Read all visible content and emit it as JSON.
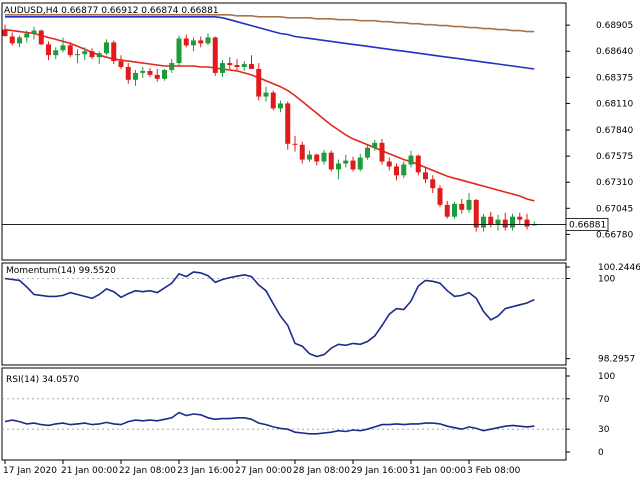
{
  "colors": {
    "up": "#1f9a3c",
    "down": "#e01b1b",
    "ma_fast": "#e3271f",
    "ma_mid": "#2431c4",
    "ma_slow": "#a9744a",
    "momentum": "#1d2a8c",
    "rsi": "#1d2a8c",
    "grid": "#9a9a9a"
  },
  "chart_data": [
    {
      "type": "candlestick",
      "title": "AUDUSD,H4  0.66877 0.66912 0.66874 0.66881",
      "ylim": [
        0.6652,
        0.6913
      ],
      "y_ticks": [
        0.68905,
        0.6864,
        0.68375,
        0.6811,
        0.6784,
        0.67575,
        0.6731,
        0.67045,
        0.6678
      ],
      "y_tick_labels": [
        "0.68905",
        "0.68640",
        "0.68375",
        "0.68110",
        "0.67840",
        "0.67575",
        "0.67310",
        "0.67045",
        "0.66780"
      ],
      "current_price": 0.66881,
      "current_price_label": "0.66881",
      "candles": [
        [
          0.6886,
          0.6891,
          0.6879,
          0.68795
        ],
        [
          0.6879,
          0.6883,
          0.687,
          0.6872
        ],
        [
          0.6872,
          0.688,
          0.6868,
          0.6878
        ],
        [
          0.6878,
          0.6885,
          0.6873,
          0.6882
        ],
        [
          0.6882,
          0.6889,
          0.6876,
          0.6885
        ],
        [
          0.6885,
          0.6886,
          0.687,
          0.6871
        ],
        [
          0.6871,
          0.6874,
          0.6855,
          0.686
        ],
        [
          0.686,
          0.6868,
          0.6856,
          0.6865
        ],
        [
          0.6865,
          0.6878,
          0.6863,
          0.687
        ],
        [
          0.687,
          0.6873,
          0.6858,
          0.686
        ],
        [
          0.686,
          0.6866,
          0.6852,
          0.6861
        ],
        [
          0.6861,
          0.6868,
          0.6855,
          0.6864
        ],
        [
          0.6864,
          0.6867,
          0.6856,
          0.6858
        ],
        [
          0.6858,
          0.6864,
          0.6851,
          0.6862
        ],
        [
          0.6862,
          0.6876,
          0.686,
          0.6873
        ],
        [
          0.6873,
          0.6875,
          0.6851,
          0.6854
        ],
        [
          0.6854,
          0.686,
          0.6846,
          0.6848
        ],
        [
          0.6848,
          0.6852,
          0.6831,
          0.6835
        ],
        [
          0.6835,
          0.6845,
          0.6829,
          0.6842
        ],
        [
          0.6842,
          0.6848,
          0.6837,
          0.6844
        ],
        [
          0.6844,
          0.6847,
          0.6838,
          0.684
        ],
        [
          0.684,
          0.6846,
          0.6833,
          0.6836
        ],
        [
          0.6836,
          0.6846,
          0.6834,
          0.6845
        ],
        [
          0.6845,
          0.6856,
          0.6842,
          0.6852
        ],
        [
          0.6852,
          0.688,
          0.6849,
          0.6877
        ],
        [
          0.6877,
          0.6881,
          0.6868,
          0.687
        ],
        [
          0.687,
          0.6878,
          0.6864,
          0.6875
        ],
        [
          0.6875,
          0.6879,
          0.6868,
          0.6872
        ],
        [
          0.6872,
          0.6882,
          0.687,
          0.6878
        ],
        [
          0.6878,
          0.6879,
          0.6839,
          0.6842
        ],
        [
          0.6842,
          0.6855,
          0.6838,
          0.6852
        ],
        [
          0.6852,
          0.6858,
          0.6846,
          0.685
        ],
        [
          0.685,
          0.6856,
          0.6845,
          0.6848
        ],
        [
          0.6848,
          0.6854,
          0.6844,
          0.6851
        ],
        [
          0.6851,
          0.686,
          0.6847,
          0.6846
        ],
        [
          0.6846,
          0.6852,
          0.6814,
          0.6818
        ],
        [
          0.6818,
          0.6828,
          0.6813,
          0.6822
        ],
        [
          0.6822,
          0.6824,
          0.6804,
          0.6806
        ],
        [
          0.6806,
          0.6814,
          0.6802,
          0.6811
        ],
        [
          0.6811,
          0.6813,
          0.6764,
          0.677
        ],
        [
          0.677,
          0.6778,
          0.6762,
          0.6769
        ],
        [
          0.6769,
          0.6772,
          0.675,
          0.6754
        ],
        [
          0.6754,
          0.6763,
          0.6752,
          0.6759
        ],
        [
          0.6759,
          0.676,
          0.6748,
          0.6752
        ],
        [
          0.6752,
          0.6764,
          0.6749,
          0.6761
        ],
        [
          0.6761,
          0.6763,
          0.6742,
          0.6744
        ],
        [
          0.6744,
          0.6754,
          0.6734,
          0.675
        ],
        [
          0.675,
          0.6759,
          0.6746,
          0.6753
        ],
        [
          0.6753,
          0.6757,
          0.6742,
          0.6744
        ],
        [
          0.6744,
          0.676,
          0.6742,
          0.6756
        ],
        [
          0.6756,
          0.6769,
          0.6754,
          0.6766
        ],
        [
          0.6766,
          0.6774,
          0.6763,
          0.6771
        ],
        [
          0.6771,
          0.6775,
          0.6749,
          0.6752
        ],
        [
          0.6752,
          0.6756,
          0.6743,
          0.6747
        ],
        [
          0.6747,
          0.675,
          0.6733,
          0.6738
        ],
        [
          0.6738,
          0.6752,
          0.6735,
          0.6749
        ],
        [
          0.6749,
          0.6763,
          0.6746,
          0.6758
        ],
        [
          0.6758,
          0.6759,
          0.6738,
          0.6741
        ],
        [
          0.6741,
          0.6746,
          0.673,
          0.6734
        ],
        [
          0.6734,
          0.6738,
          0.672,
          0.6725
        ],
        [
          0.6725,
          0.6728,
          0.6706,
          0.6708
        ],
        [
          0.6708,
          0.6712,
          0.6694,
          0.6696
        ],
        [
          0.6696,
          0.6711,
          0.6694,
          0.6709
        ],
        [
          0.6709,
          0.6714,
          0.6699,
          0.6703
        ],
        [
          0.6703,
          0.672,
          0.67,
          0.6713
        ],
        [
          0.6713,
          0.6714,
          0.6681,
          0.6685
        ],
        [
          0.6685,
          0.6699,
          0.6681,
          0.6696
        ],
        [
          0.6696,
          0.6701,
          0.6685,
          0.6688
        ],
        [
          0.6688,
          0.6698,
          0.6682,
          0.6693
        ],
        [
          0.6693,
          0.67,
          0.6682,
          0.6685
        ],
        [
          0.6685,
          0.6699,
          0.6682,
          0.6696
        ],
        [
          0.6696,
          0.67,
          0.6688,
          0.6693
        ],
        [
          0.6693,
          0.6699,
          0.6683,
          0.6686
        ],
        [
          0.66877,
          0.66912,
          0.66874,
          0.66881
        ]
      ],
      "ma_fast": [
        0.6886,
        0.6885,
        0.6884,
        0.6883,
        0.6882,
        0.688,
        0.6878,
        0.6876,
        0.6874,
        0.6872,
        0.6869,
        0.6866,
        0.6863,
        0.686,
        0.6858,
        0.6856,
        0.6855,
        0.6854,
        0.6853,
        0.6852,
        0.6851,
        0.685,
        0.6849,
        0.6849,
        0.6849,
        0.6849,
        0.6849,
        0.6848,
        0.6848,
        0.6847,
        0.6846,
        0.6845,
        0.6844,
        0.6842,
        0.684,
        0.6837,
        0.6834,
        0.6831,
        0.6828,
        0.6824,
        0.6819,
        0.6813,
        0.6807,
        0.6801,
        0.6795,
        0.6789,
        0.6784,
        0.6779,
        0.6775,
        0.6772,
        0.6769,
        0.6766,
        0.6763,
        0.676,
        0.6757,
        0.6754,
        0.6752,
        0.6749,
        0.6746,
        0.6743,
        0.674,
        0.6737,
        0.6735,
        0.6733,
        0.6731,
        0.6729,
        0.6727,
        0.6725,
        0.6723,
        0.6721,
        0.6719,
        0.6717,
        0.6714,
        0.6712
      ],
      "ma_mid": [
        0.6899,
        0.6899,
        0.6899,
        0.6899,
        0.6899,
        0.6899,
        0.6899,
        0.6899,
        0.6899,
        0.6899,
        0.6899,
        0.6899,
        0.6899,
        0.6899,
        0.6899,
        0.6899,
        0.6899,
        0.6899,
        0.6899,
        0.6899,
        0.6899,
        0.6899,
        0.6899,
        0.6899,
        0.6899,
        0.6899,
        0.6899,
        0.6899,
        0.6899,
        0.6899,
        0.6898,
        0.6896,
        0.6894,
        0.6892,
        0.689,
        0.6888,
        0.6886,
        0.6884,
        0.6882,
        0.6881,
        0.6879,
        0.6878,
        0.6877,
        0.6876,
        0.6875,
        0.6874,
        0.6873,
        0.6872,
        0.6871,
        0.687,
        0.6869,
        0.6868,
        0.6867,
        0.6866,
        0.6865,
        0.6864,
        0.6863,
        0.6862,
        0.6861,
        0.686,
        0.6859,
        0.6858,
        0.6857,
        0.6856,
        0.6855,
        0.6854,
        0.6853,
        0.6852,
        0.6851,
        0.685,
        0.6849,
        0.6848,
        0.6847,
        0.6846
      ],
      "ma_slow": [
        0.6901,
        0.6901,
        0.6901,
        0.6901,
        0.6901,
        0.6901,
        0.6901,
        0.6901,
        0.6901,
        0.6901,
        0.6901,
        0.6901,
        0.6901,
        0.6901,
        0.6901,
        0.6901,
        0.6901,
        0.6901,
        0.6901,
        0.6901,
        0.6901,
        0.6901,
        0.6901,
        0.6901,
        0.6901,
        0.6901,
        0.6901,
        0.6901,
        0.6901,
        0.6901,
        0.6901,
        0.6901,
        0.69,
        0.69,
        0.69,
        0.6899,
        0.6899,
        0.6899,
        0.6899,
        0.6898,
        0.6898,
        0.6898,
        0.6898,
        0.6897,
        0.6897,
        0.6897,
        0.6896,
        0.6896,
        0.6896,
        0.6895,
        0.6895,
        0.6895,
        0.6894,
        0.6894,
        0.6893,
        0.6893,
        0.6892,
        0.6892,
        0.6891,
        0.6891,
        0.689,
        0.689,
        0.6889,
        0.6889,
        0.6888,
        0.6888,
        0.6887,
        0.6887,
        0.6886,
        0.6886,
        0.6885,
        0.6885,
        0.6884,
        0.6884
      ],
      "x_labels": [
        "17 Jan 2020",
        "21 Jan 00:00",
        "22 Jan 08:00",
        "23 Jan 16:00",
        "27 Jan 00:00",
        "28 Jan 08:00",
        "29 Jan 16:00",
        "31 Jan 00:00",
        "3 Feb 08:00"
      ],
      "x_label_bar_index": [
        0,
        8,
        16,
        24,
        32,
        40,
        48,
        56,
        64
      ]
    },
    {
      "type": "line",
      "title": "Momentum(14) 99.5520",
      "ylim": [
        98.16,
        100.33
      ],
      "y_ticks": [
        100.2446,
        100.0,
        98.2957
      ],
      "y_tick_labels": [
        "100.2446",
        "100",
        "98.2957"
      ],
      "level": 100.0,
      "values": [
        100.0,
        99.98,
        99.96,
        99.82,
        99.66,
        99.64,
        99.62,
        99.62,
        99.64,
        99.7,
        99.66,
        99.62,
        99.58,
        99.66,
        99.78,
        99.72,
        99.6,
        99.68,
        99.74,
        99.72,
        99.74,
        99.7,
        99.8,
        99.9,
        100.1,
        100.04,
        100.14,
        100.12,
        100.06,
        99.92,
        99.98,
        100.02,
        100.05,
        100.08,
        100.04,
        99.86,
        99.74,
        99.46,
        99.2,
        99.0,
        98.62,
        98.56,
        98.4,
        98.34,
        98.38,
        98.52,
        98.6,
        98.58,
        98.62,
        98.6,
        98.66,
        98.78,
        99.0,
        99.24,
        99.36,
        99.34,
        99.52,
        99.84,
        99.96,
        99.94,
        99.9,
        99.74,
        99.62,
        99.64,
        99.7,
        99.58,
        99.3,
        99.12,
        99.2,
        99.36,
        99.4,
        99.44,
        99.48,
        99.552
      ],
      "x_labels": [
        "17 Jan 2020",
        "21 Jan 00:00",
        "22 Jan 08:00",
        "23 Jan 16:00",
        "27 Jan 00:00",
        "28 Jan 08:00",
        "29 Jan 16:00",
        "31 Jan 00:00",
        "3 Feb 08:00"
      ]
    },
    {
      "type": "line",
      "title": "RSI(14) 34.0570",
      "ylim": [
        0,
        100
      ],
      "y_ticks": [
        100,
        70,
        30,
        0
      ],
      "y_tick_labels": [
        "100",
        "70",
        "30",
        "0"
      ],
      "levels": [
        70,
        30
      ],
      "values": [
        40,
        42,
        40,
        37,
        38,
        36,
        35,
        37,
        38,
        36,
        37,
        38,
        36,
        37,
        39,
        37,
        36,
        40,
        42,
        41,
        42,
        41,
        43,
        45,
        52,
        48,
        50,
        49,
        45,
        43,
        44,
        44,
        45,
        45,
        43,
        38,
        36,
        33,
        31,
        30,
        26,
        25,
        24,
        24,
        25,
        26,
        28,
        27,
        29,
        28,
        30,
        33,
        36,
        36,
        37,
        36,
        37,
        37,
        38,
        38,
        37,
        34,
        32,
        30,
        33,
        31,
        28,
        30,
        32,
        34,
        35,
        34,
        33,
        34.057
      ],
      "x_labels": [
        "17 Jan 2020",
        "21 Jan 00:00",
        "22 Jan 08:00",
        "23 Jan 16:00",
        "27 Jan 00:00",
        "28 Jan 08:00",
        "29 Jan 16:00",
        "31 Jan 00:00",
        "3 Feb 08:00"
      ]
    }
  ]
}
